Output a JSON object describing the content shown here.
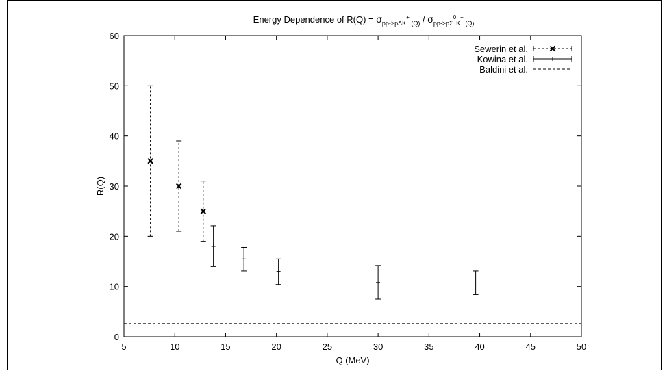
{
  "chart_data": {
    "type": "scatter",
    "title": {
      "main": "Energy Dependence of R(Q) = ",
      "sym1": "σ",
      "sub1": "pp->pΛK",
      "sup1": "+",
      "sub1b": " (Q)",
      "sep": " / ",
      "sym2": "σ",
      "sub2": "pp->pΣ",
      "sup2": "0",
      "mid2": "K",
      "sup2b": "+",
      "sub2b": " (Q)"
    },
    "xlabel": "Q (MeV)",
    "ylabel": "R(Q)",
    "xlim": [
      5,
      50
    ],
    "ylim": [
      0,
      60
    ],
    "xticks": [
      5,
      10,
      15,
      20,
      25,
      30,
      35,
      40,
      45,
      50
    ],
    "yticks": [
      0,
      10,
      20,
      30,
      40,
      50,
      60
    ],
    "grid": false,
    "legend_position": "top-right",
    "series": [
      {
        "name": "Sewerin et al.",
        "style": "dashed-errorbars-cross",
        "points": [
          {
            "x": 7.6,
            "y": 35,
            "ylow": 20,
            "yhigh": 50
          },
          {
            "x": 10.4,
            "y": 30,
            "ylow": 21,
            "yhigh": 39
          },
          {
            "x": 12.8,
            "y": 25,
            "ylow": 19,
            "yhigh": 31
          }
        ]
      },
      {
        "name": "Kowina et al.",
        "style": "solid-errorbars",
        "points": [
          {
            "x": 13.8,
            "y": 18,
            "ylow": 14,
            "yhigh": 22.1
          },
          {
            "x": 16.8,
            "y": 15.5,
            "ylow": 13.1,
            "yhigh": 17.8
          },
          {
            "x": 20.2,
            "y": 13,
            "ylow": 10.4,
            "yhigh": 15.5
          },
          {
            "x": 30.0,
            "y": 10.8,
            "ylow": 7.5,
            "yhigh": 14.2
          },
          {
            "x": 39.6,
            "y": 10.7,
            "ylow": 8.4,
            "yhigh": 13.1
          }
        ]
      },
      {
        "name": "Baldini et al.",
        "style": "dashed-line",
        "y": 2.6
      }
    ]
  }
}
